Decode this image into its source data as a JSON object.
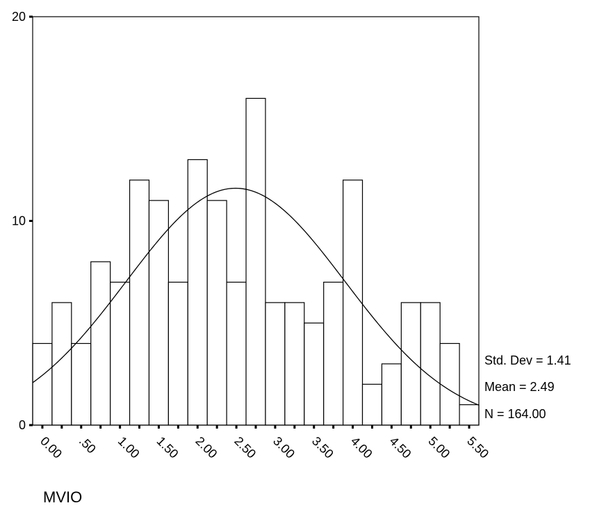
{
  "chart_data": {
    "type": "bar",
    "subtype": "histogram",
    "xlabel": "MVIO",
    "ylim": [
      0,
      20
    ],
    "y_ticks": [
      "0",
      "10",
      "20"
    ],
    "x_tick_labels": [
      "0.00",
      ".50",
      "1.00",
      "1.50",
      "2.00",
      "2.50",
      "3.00",
      "3.50",
      "4.00",
      "4.50",
      "5.00",
      "5.50"
    ],
    "bin_centers": [
      0.0,
      0.25,
      0.5,
      0.75,
      1.0,
      1.25,
      1.5,
      1.75,
      2.0,
      2.25,
      2.5,
      2.75,
      3.0,
      3.25,
      3.5,
      3.75,
      4.0,
      4.25,
      4.5,
      4.75,
      5.0,
      5.25,
      5.5
    ],
    "values": [
      4,
      6,
      4,
      8,
      7,
      12,
      11,
      7,
      13,
      11,
      7,
      16,
      6,
      6,
      5,
      7,
      12,
      2,
      3,
      6,
      6,
      4,
      1
    ],
    "normal_curve": {
      "mean": 2.49,
      "std_dev": 1.41,
      "n": 164,
      "bin_width": 0.25
    },
    "stats": {
      "std_dev": "Std. Dev = 1.41",
      "mean": "Mean = 2.49",
      "n": "N = 164.00"
    },
    "grid": false
  }
}
